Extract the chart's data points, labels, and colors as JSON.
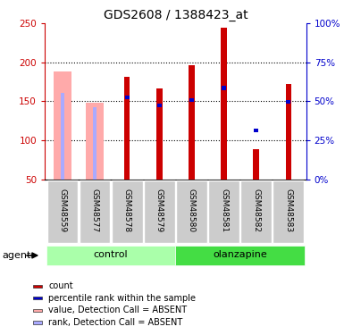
{
  "title": "GDS2608 / 1388423_at",
  "samples": [
    "GSM48559",
    "GSM48577",
    "GSM48578",
    "GSM48579",
    "GSM48580",
    "GSM48581",
    "GSM48582",
    "GSM48583"
  ],
  "count_values": [
    null,
    null,
    181,
    167,
    196,
    245,
    88,
    172
  ],
  "count_absent_values": [
    188,
    148,
    null,
    null,
    null,
    null,
    null,
    null
  ],
  "percentile_values": [
    null,
    null,
    155,
    145,
    152,
    167,
    null,
    149
  ],
  "percentile_absent_values": [
    161,
    143,
    null,
    null,
    null,
    null,
    null,
    null
  ],
  "percentile_rank_present": [
    null,
    null,
    null,
    null,
    null,
    null,
    113,
    null
  ],
  "ylim": [
    50,
    250
  ],
  "yticks_left": [
    50,
    100,
    150,
    200,
    250
  ],
  "yticks_right_vals": [
    0,
    25,
    50,
    75,
    100
  ],
  "yticks_right_pos": [
    50,
    100,
    150,
    200,
    250
  ],
  "grid_lines": [
    100,
    150,
    200
  ],
  "count_color": "#cc0000",
  "percentile_color": "#0000cc",
  "absent_count_color": "#ffaaaa",
  "absent_rank_color": "#aaaaff",
  "control_color": "#aaffaa",
  "olanzapine_color": "#44dd44",
  "sample_bg_color": "#cccccc",
  "title_fontsize": 10,
  "legend_items": [
    [
      "#cc0000",
      "count"
    ],
    [
      "#0000cc",
      "percentile rank within the sample"
    ],
    [
      "#ffaaaa",
      "value, Detection Call = ABSENT"
    ],
    [
      "#aaaaff",
      "rank, Detection Call = ABSENT"
    ]
  ]
}
